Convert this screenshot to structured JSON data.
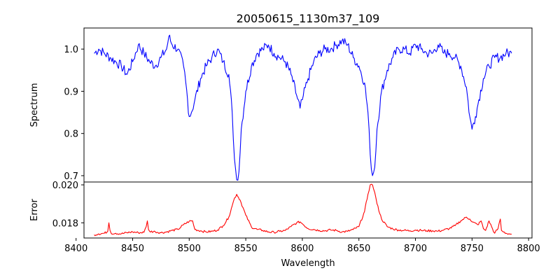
{
  "chart_data": {
    "type": "line",
    "title": "20050615_1130m37_109",
    "xlabel": "Wavelength",
    "x_ticks": [
      8400,
      8450,
      8500,
      8550,
      8600,
      8650,
      8700,
      8750,
      8800
    ],
    "xlim": [
      8407,
      8803
    ],
    "grid": false,
    "legend": "none",
    "panels": [
      {
        "id": "spectrum",
        "ylabel": "Spectrum",
        "ylim": [
          0.685,
          1.05
        ],
        "y_ticks": [
          0.7,
          0.8,
          0.9,
          1.0
        ],
        "y_tick_labels": [
          "0.7",
          "0.8",
          "0.9",
          "1.0"
        ],
        "color": "#0000ff",
        "series": [
          {
            "x": [
              8416,
              8420,
              8425,
              8430,
              8435,
              8440,
              8445,
              8450,
              8455,
              8460,
              8465,
              8470,
              8475,
              8480,
              8482,
              8485,
              8490,
              8495,
              8497,
              8500,
              8502,
              8505,
              8510,
              8515,
              8520,
              8525,
              8530,
              8535,
              8538,
              8540,
              8542,
              8544,
              8546,
              8550,
              8555,
              8560,
              8565,
              8570,
              8575,
              8580,
              8585,
              8590,
              8595,
              8598,
              8600,
              8605,
              8610,
              8615,
              8620,
              8625,
              8630,
              8635,
              8640,
              8645,
              8650,
              8655,
              8658,
              8660,
              8662,
              8664,
              8666,
              8670,
              8675,
              8680,
              8685,
              8690,
              8695,
              8700,
              8705,
              8710,
              8715,
              8720,
              8725,
              8730,
              8735,
              8740,
              8745,
              8748,
              8750,
              8753,
              8756,
              8760,
              8765,
              8770,
              8775,
              8780,
              8785
            ],
            "y": [
              0.99,
              1.0,
              0.99,
              0.98,
              0.97,
              0.96,
              0.94,
              0.97,
              1.01,
              0.99,
              0.97,
              0.96,
              0.98,
              1.0,
              1.03,
              1.01,
              1.0,
              0.96,
              0.92,
              0.84,
              0.85,
              0.88,
              0.93,
              0.96,
              0.98,
              1.0,
              0.97,
              0.94,
              0.85,
              0.74,
              0.69,
              0.71,
              0.81,
              0.9,
              0.96,
              0.99,
              1.0,
              1.01,
              0.99,
              0.98,
              0.97,
              0.94,
              0.89,
              0.86,
              0.88,
              0.93,
              0.97,
              0.99,
              1.0,
              1.0,
              1.01,
              1.02,
              1.01,
              0.98,
              0.96,
              0.92,
              0.85,
              0.75,
              0.7,
              0.72,
              0.81,
              0.9,
              0.95,
              0.98,
              1.0,
              1.0,
              0.99,
              1.01,
              1.0,
              0.99,
              0.99,
              1.01,
              0.99,
              0.99,
              0.98,
              0.96,
              0.91,
              0.84,
              0.81,
              0.84,
              0.88,
              0.93,
              0.96,
              0.98,
              0.98,
              0.99,
              0.99
            ]
          }
        ]
      },
      {
        "id": "error",
        "ylabel": "Error",
        "ylim": [
          0.0172,
          0.02015
        ],
        "y_ticks": [
          0.018,
          0.02
        ],
        "y_tick_labels": [
          "0.018",
          "0.020"
        ],
        "color": "#ff0000",
        "series": [
          {
            "x": [
              8416,
              8420,
              8425,
              8428,
              8429,
              8430,
              8431,
              8435,
              8440,
              8445,
              8450,
              8455,
              8460,
              8462,
              8463,
              8464,
              8465,
              8470,
              8475,
              8480,
              8485,
              8490,
              8495,
              8500,
              8503,
              8505,
              8510,
              8515,
              8520,
              8525,
              8530,
              8535,
              8538,
              8540,
              8542,
              8545,
              8550,
              8555,
              8560,
              8565,
              8570,
              8575,
              8580,
              8585,
              8590,
              8595,
              8598,
              8600,
              8605,
              8610,
              8615,
              8620,
              8625,
              8630,
              8635,
              8640,
              8645,
              8650,
              8655,
              8658,
              8660,
              8662,
              8664,
              8666,
              8670,
              8675,
              8680,
              8685,
              8690,
              8695,
              8700,
              8705,
              8710,
              8715,
              8720,
              8725,
              8730,
              8735,
              8740,
              8745,
              8748,
              8750,
              8755,
              8758,
              8760,
              8762,
              8765,
              8768,
              8770,
              8773,
              8775,
              8776,
              8777,
              8780,
              8785
            ],
            "y": [
              0.01737,
              0.01742,
              0.01745,
              0.01755,
              0.018,
              0.0176,
              0.01745,
              0.01745,
              0.01742,
              0.01748,
              0.01752,
              0.01748,
              0.0175,
              0.0178,
              0.0181,
              0.01765,
              0.01755,
              0.01753,
              0.01748,
              0.01752,
              0.0176,
              0.01765,
              0.0179,
              0.01808,
              0.0181,
              0.01765,
              0.01758,
              0.01752,
              0.01755,
              0.01762,
              0.01785,
              0.0183,
              0.0189,
              0.0193,
              0.0195,
              0.0192,
              0.0184,
              0.01778,
              0.01765,
              0.0176,
              0.01752,
              0.0175,
              0.01755,
              0.0176,
              0.0178,
              0.018,
              0.01805,
              0.01795,
              0.0177,
              0.01765,
              0.0176,
              0.01758,
              0.01762,
              0.0176,
              0.01752,
              0.01755,
              0.01765,
              0.0178,
              0.0186,
              0.0195,
              0.02,
              0.02,
              0.0196,
              0.019,
              0.0182,
              0.0178,
              0.01768,
              0.01762,
              0.0176,
              0.01758,
              0.01762,
              0.0176,
              0.01758,
              0.01758,
              0.01756,
              0.01762,
              0.0177,
              0.01785,
              0.0181,
              0.0183,
              0.0182,
              0.01805,
              0.0179,
              0.0181,
              0.0177,
              0.0176,
              0.0181,
              0.0177,
              0.01745,
              0.0177,
              0.0182,
              0.0176,
              0.01755,
              0.01745,
              0.0174
            ]
          }
        ]
      }
    ]
  }
}
